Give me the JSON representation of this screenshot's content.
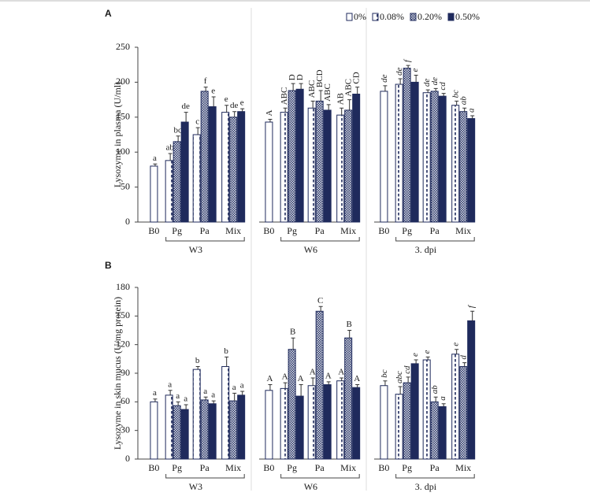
{
  "chart_data": [
    {
      "type": "bar",
      "panel": "A",
      "ylabel": "Lysozyme in plasma (U/ml)",
      "legend": "top-right",
      "ylim": [
        0,
        250
      ],
      "yticks": [
        0,
        50,
        100,
        150,
        200,
        250
      ],
      "groups": [
        "W3",
        "W6",
        "3. dpi"
      ],
      "rotated_letters": [
        false,
        true,
        true
      ],
      "categories": [
        "B0",
        "Pg",
        "Pa",
        "Mix",
        "B0",
        "Pg",
        "Pa",
        "Mix",
        "B0",
        "Pg",
        "Pa",
        "Mix"
      ],
      "series": [
        {
          "name": "0%",
          "color": "#ffffff",
          "pattern": null,
          "values": [
            80,
            null,
            null,
            null,
            143,
            null,
            null,
            null,
            187,
            null,
            null,
            null
          ],
          "errors": [
            3,
            null,
            null,
            null,
            4,
            null,
            null,
            null,
            8,
            null,
            null,
            null
          ],
          "letters": [
            "a",
            null,
            null,
            null,
            "A",
            null,
            null,
            null,
            "de",
            null,
            null,
            null
          ]
        },
        {
          "name": "0.08%",
          "color": "#ffffff",
          "pattern": "dash",
          "values": [
            null,
            88,
            125,
            157,
            null,
            157,
            163,
            153,
            null,
            197,
            185,
            167
          ],
          "errors": [
            null,
            10,
            10,
            10,
            null,
            6,
            10,
            10,
            null,
            8,
            4,
            6
          ],
          "letters": [
            null,
            "ab",
            "c",
            "e",
            null,
            "ABC",
            "ABC",
            "AB",
            null,
            "de",
            "de",
            "bc"
          ]
        },
        {
          "name": "0.20%",
          "color": "#8a93b0",
          "pattern": "check",
          "values": [
            null,
            115,
            187,
            150,
            null,
            188,
            173,
            160,
            null,
            220,
            187,
            158
          ],
          "errors": [
            null,
            8,
            6,
            8,
            null,
            10,
            15,
            15,
            null,
            4,
            4,
            5
          ],
          "letters": [
            null,
            "bc",
            "f",
            "de",
            null,
            "D",
            "BCD",
            "ABC",
            null,
            "f",
            "de",
            "ab"
          ]
        },
        {
          "name": "0.50%",
          "color": "#1f2a5c",
          "pattern": null,
          "values": [
            null,
            143,
            165,
            158,
            null,
            190,
            160,
            183,
            null,
            200,
            180,
            148
          ],
          "errors": [
            null,
            14,
            14,
            4,
            null,
            8,
            8,
            10,
            null,
            10,
            4,
            4
          ],
          "letters": [
            null,
            "de",
            "e",
            "e",
            null,
            "D",
            "ABC",
            "CD",
            null,
            "e",
            "cd",
            "a"
          ]
        }
      ]
    },
    {
      "type": "bar",
      "panel": "B",
      "ylabel": "Lysozyme in skin mucus (U/mg protein)",
      "ylim": [
        0,
        180
      ],
      "yticks": [
        0,
        30,
        60,
        90,
        120,
        150,
        180
      ],
      "groups": [
        "W3",
        "W6",
        "3. dpi"
      ],
      "rotated_letters": [
        false,
        false,
        true
      ],
      "categories": [
        "B0",
        "Pg",
        "Pa",
        "Mix",
        "B0",
        "Pg",
        "Pa",
        "Mix",
        "B0",
        "Pg",
        "Pa",
        "Mix"
      ],
      "series": [
        {
          "color": "#ffffff",
          "pattern": null,
          "values": [
            60,
            null,
            null,
            null,
            72,
            null,
            null,
            null,
            77,
            null,
            null,
            null
          ],
          "errors": [
            3,
            null,
            null,
            null,
            6,
            null,
            null,
            null,
            5,
            null,
            null,
            null
          ],
          "letters": [
            "a",
            null,
            null,
            null,
            "A",
            null,
            null,
            null,
            "bc",
            null,
            null,
            null
          ]
        },
        {
          "color": "#ffffff",
          "pattern": "dash",
          "values": [
            null,
            67,
            94,
            97,
            null,
            74,
            77,
            82,
            null,
            68,
            104,
            110
          ],
          "errors": [
            null,
            5,
            3,
            10,
            null,
            6,
            8,
            3,
            null,
            8,
            3,
            5
          ],
          "letters": [
            null,
            "a",
            "b",
            "b",
            null,
            "A",
            "A",
            "A",
            null,
            "abc",
            "e",
            "e"
          ]
        },
        {
          "color": "#8a93b0",
          "pattern": "check",
          "values": [
            null,
            56,
            62,
            61,
            null,
            115,
            155,
            127,
            null,
            80,
            60,
            97
          ],
          "errors": [
            null,
            4,
            3,
            8,
            null,
            12,
            5,
            8,
            null,
            6,
            5,
            4
          ],
          "letters": [
            null,
            "a",
            "a",
            "a",
            null,
            "B",
            "C",
            "B",
            null,
            "cd",
            "ab",
            "d"
          ]
        },
        {
          "color": "#1f2a5c",
          "pattern": null,
          "values": [
            null,
            52,
            58,
            67,
            null,
            66,
            78,
            75,
            null,
            100,
            55,
            145
          ],
          "errors": [
            null,
            5,
            3,
            4,
            null,
            12,
            3,
            3,
            null,
            4,
            3,
            10
          ],
          "letters": [
            null,
            "a",
            "a",
            "a",
            null,
            "A",
            "A",
            "A",
            null,
            "e",
            "a",
            "f"
          ]
        }
      ]
    }
  ]
}
